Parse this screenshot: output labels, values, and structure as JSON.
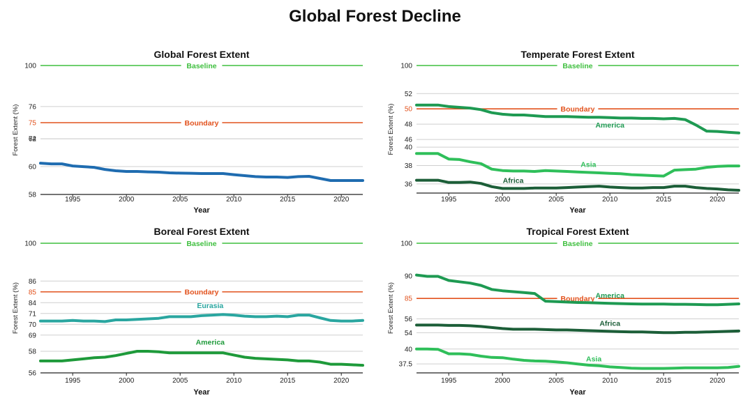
{
  "title": "Global Forest Decline",
  "colors": {
    "baseline": "#3fbf3f",
    "boundary": "#e2521d",
    "boundary_tick": "#e2521d",
    "global": "#1f6cb0",
    "eurasia": "#2aa6a0",
    "america_temperate": "#1e9a52",
    "africa": "#1c5e38",
    "asia": "#2fbf5a",
    "america_boreal": "#1e9a3a",
    "america_tropical": "#1e9a52",
    "grid": "#cfcfcf",
    "axis": "#222222"
  },
  "chart_data": [
    {
      "type": "line",
      "title": "Global Forest Extent",
      "xlabel": "Year",
      "ylabel": "Forest Extent (%)",
      "xlim": [
        1992,
        2022
      ],
      "xticks": [
        "1995",
        "2000",
        "2005",
        "2010",
        "2015",
        "2020"
      ],
      "yticks": [
        "100",
        "76",
        "75",
        "74",
        "62",
        "60",
        "58"
      ],
      "ytick_colors": [
        "",
        "",
        "boundary",
        "",
        "",
        "",
        ""
      ],
      "y_segments": [
        {
          "range": [
            58,
            62
          ],
          "weight": 0.38
        },
        {
          "range": [
            74,
            76
          ],
          "weight": 0.22
        },
        {
          "range": [
            76,
            100
          ],
          "weight": 0.28
        }
      ],
      "reference_lines": [
        {
          "label": "Baseline",
          "value": 100,
          "color_key": "baseline"
        },
        {
          "label": "Boundary",
          "value": 75,
          "color_key": "boundary"
        }
      ],
      "x": [
        1992,
        1993,
        1994,
        1995,
        1996,
        1997,
        1998,
        1999,
        2000,
        2001,
        2002,
        2003,
        2004,
        2005,
        2006,
        2007,
        2008,
        2009,
        2010,
        2011,
        2012,
        2013,
        2014,
        2015,
        2016,
        2017,
        2018,
        2019,
        2020,
        2021,
        2022
      ],
      "series": [
        {
          "name": "",
          "color_key": "global",
          "label_at": null,
          "values": [
            60.25,
            60.2,
            60.2,
            60.05,
            60.0,
            59.95,
            59.8,
            59.7,
            59.65,
            59.65,
            59.62,
            59.6,
            59.55,
            59.53,
            59.52,
            59.5,
            59.5,
            59.5,
            59.42,
            59.35,
            59.28,
            59.25,
            59.25,
            59.22,
            59.28,
            59.3,
            59.15,
            59.0,
            59.0,
            59.0,
            59.0
          ]
        }
      ]
    },
    {
      "type": "line",
      "title": "Temperate Forest Extent",
      "xlabel": "Year",
      "ylabel": "Forest Extent (%)",
      "xlim": [
        1992,
        2022
      ],
      "xticks": [
        "1995",
        "2000",
        "2005",
        "2010",
        "2015",
        "2020"
      ],
      "yticks": [
        "100",
        "52",
        "50",
        "48",
        "46",
        "40",
        "38",
        "36"
      ],
      "ytick_colors": [
        "",
        "",
        "boundary",
        "",
        "",
        "",
        "",
        ""
      ],
      "y_segments": [
        {
          "range": [
            35,
            40
          ],
          "weight": 0.36
        },
        {
          "range": [
            45,
            52
          ],
          "weight": 0.42
        },
        {
          "range": [
            52,
            100
          ],
          "weight": 0.22
        }
      ],
      "reference_lines": [
        {
          "label": "Baseline",
          "value": 100,
          "color_key": "baseline"
        },
        {
          "label": "Boundary",
          "value": 50,
          "color_key": "boundary"
        }
      ],
      "x": [
        1992,
        1993,
        1994,
        1995,
        1996,
        1997,
        1998,
        1999,
        2000,
        2001,
        2002,
        2003,
        2004,
        2005,
        2006,
        2007,
        2008,
        2009,
        2010,
        2011,
        2012,
        2013,
        2014,
        2015,
        2016,
        2017,
        2018,
        2019,
        2020,
        2021,
        2022
      ],
      "series": [
        {
          "name": "America",
          "color_key": "america_temperate",
          "label_year": 2010,
          "label_dy": 14,
          "values": [
            50.5,
            50.5,
            50.5,
            50.3,
            50.2,
            50.1,
            49.9,
            49.5,
            49.3,
            49.2,
            49.2,
            49.1,
            49.0,
            49.0,
            49.0,
            48.95,
            48.9,
            48.9,
            48.85,
            48.8,
            48.8,
            48.75,
            48.75,
            48.7,
            48.75,
            48.6,
            47.9,
            47.1,
            47.05,
            46.95,
            46.85
          ]
        },
        {
          "name": "Asia",
          "color_key": "asia",
          "label_year": 2008,
          "label_dy": -8,
          "values": [
            39.3,
            39.3,
            39.3,
            38.7,
            38.65,
            38.4,
            38.2,
            37.6,
            37.45,
            37.4,
            37.4,
            37.35,
            37.45,
            37.4,
            37.35,
            37.3,
            37.25,
            37.2,
            37.15,
            37.1,
            37.0,
            36.95,
            36.9,
            36.85,
            37.5,
            37.55,
            37.6,
            37.8,
            37.9,
            37.95,
            37.95
          ]
        },
        {
          "name": "Africa",
          "color_key": "africa",
          "label_year": 2001,
          "label_dy": -8,
          "values": [
            36.4,
            36.4,
            36.4,
            36.15,
            36.15,
            36.2,
            36.05,
            35.7,
            35.5,
            35.5,
            35.5,
            35.55,
            35.55,
            35.55,
            35.6,
            35.65,
            35.7,
            35.75,
            35.65,
            35.6,
            35.55,
            35.55,
            35.6,
            35.6,
            35.75,
            35.75,
            35.6,
            35.5,
            35.45,
            35.35,
            35.3
          ]
        }
      ]
    },
    {
      "type": "line",
      "title": "Boreal Forest Extent",
      "xlabel": "Year",
      "ylabel": "Forest Extent (%)",
      "xlim": [
        1992,
        2022
      ],
      "xticks": [
        "1995",
        "2000",
        "2005",
        "2010",
        "2015",
        "2020"
      ],
      "yticks": [
        "100",
        "86",
        "85",
        "84",
        "71",
        "70",
        "69",
        "58",
        "56"
      ],
      "ytick_colors": [
        "",
        "",
        "boundary",
        "",
        "",
        "",
        "",
        "",
        ""
      ],
      "y_segments": [
        {
          "range": [
            56,
            59
          ],
          "weight": 0.25
        },
        {
          "range": [
            68.5,
            71.5
          ],
          "weight": 0.25
        },
        {
          "range": [
            83.5,
            86.5
          ],
          "weight": 0.25
        },
        {
          "range": [
            86.5,
            100
          ],
          "weight": 0.25
        }
      ],
      "reference_lines": [
        {
          "label": "Baseline",
          "value": 100,
          "color_key": "baseline"
        },
        {
          "label": "Boundary",
          "value": 85,
          "color_key": "boundary"
        }
      ],
      "x": [
        1992,
        1993,
        1994,
        1995,
        1996,
        1997,
        1998,
        1999,
        2000,
        2001,
        2002,
        2003,
        2004,
        2005,
        2006,
        2007,
        2008,
        2009,
        2010,
        2011,
        2012,
        2013,
        2014,
        2015,
        2016,
        2017,
        2018,
        2019,
        2020,
        2021,
        2022
      ],
      "series": [
        {
          "name": "Eurasia",
          "color_key": "eurasia",
          "label_year": 2007.8,
          "label_dy": -10,
          "values": [
            70.3,
            70.3,
            70.3,
            70.35,
            70.3,
            70.3,
            70.25,
            70.4,
            70.4,
            70.45,
            70.5,
            70.55,
            70.7,
            70.7,
            70.7,
            70.8,
            70.85,
            70.9,
            70.85,
            70.75,
            70.7,
            70.7,
            70.75,
            70.7,
            70.85,
            70.85,
            70.6,
            70.35,
            70.3,
            70.3,
            70.35
          ]
        },
        {
          "name": "America",
          "color_key": "america_boreal",
          "label_year": 2007.8,
          "label_dy": -12,
          "values": [
            57.1,
            57.1,
            57.1,
            57.2,
            57.3,
            57.4,
            57.45,
            57.6,
            57.8,
            58.0,
            58.0,
            57.95,
            57.85,
            57.85,
            57.85,
            57.85,
            57.85,
            57.85,
            57.65,
            57.45,
            57.35,
            57.3,
            57.25,
            57.2,
            57.1,
            57.1,
            57.0,
            56.8,
            56.8,
            56.75,
            56.7
          ]
        }
      ]
    },
    {
      "type": "line",
      "title": "Tropical Forest Extent",
      "xlabel": "Year",
      "ylabel": "Forest Extent (%)",
      "xlim": [
        1992,
        2022
      ],
      "xticks": [
        "1995",
        "2000",
        "2005",
        "2010",
        "2015",
        "2020"
      ],
      "yticks": [
        "100",
        "90",
        "85",
        "56",
        "54",
        "40",
        "37.5"
      ],
      "ytick_colors": [
        "",
        "",
        "boundary",
        "",
        "",
        "",
        ""
      ],
      "y_segments": [
        {
          "range": [
            36,
            41
          ],
          "weight": 0.23
        },
        {
          "range": [
            52.5,
            57
          ],
          "weight": 0.24
        },
        {
          "range": [
            82,
            91.5
          ],
          "weight": 0.33
        },
        {
          "range": [
            91.5,
            100
          ],
          "weight": 0.2
        }
      ],
      "reference_lines": [
        {
          "label": "Baseline",
          "value": 100,
          "color_key": "baseline"
        },
        {
          "label": "Boundary",
          "value": 85,
          "color_key": "boundary"
        }
      ],
      "x": [
        1992,
        1993,
        1994,
        1995,
        1996,
        1997,
        1998,
        1999,
        2000,
        2001,
        2002,
        2003,
        2004,
        2005,
        2006,
        2007,
        2008,
        2009,
        2010,
        2011,
        2012,
        2013,
        2014,
        2015,
        2016,
        2017,
        2018,
        2019,
        2020,
        2021,
        2022
      ],
      "series": [
        {
          "name": "America",
          "color_key": "america_tropical",
          "label_year": 2010,
          "label_dy": -8,
          "values": [
            90.2,
            89.9,
            89.9,
            89.0,
            88.7,
            88.4,
            87.9,
            87.0,
            86.7,
            86.5,
            86.3,
            86.1,
            84.4,
            84.3,
            84.2,
            84.1,
            84.05,
            84.0,
            83.9,
            83.85,
            83.8,
            83.75,
            83.75,
            83.75,
            83.7,
            83.7,
            83.65,
            83.6,
            83.6,
            83.7,
            83.8
          ]
        },
        {
          "name": "Africa",
          "color_key": "africa",
          "label_year": 2010,
          "label_dy": -8,
          "values": [
            55.1,
            55.1,
            55.1,
            55.05,
            55.05,
            55.0,
            54.9,
            54.75,
            54.6,
            54.5,
            54.5,
            54.5,
            54.45,
            54.4,
            54.4,
            54.35,
            54.3,
            54.25,
            54.2,
            54.15,
            54.1,
            54.1,
            54.05,
            54.0,
            54.0,
            54.05,
            54.05,
            54.1,
            54.15,
            54.2,
            54.25
          ]
        },
        {
          "name": "Asia",
          "color_key": "asia",
          "label_year": 2008.5,
          "label_dy": -6,
          "values": [
            40.0,
            40.0,
            39.95,
            39.2,
            39.2,
            39.1,
            38.8,
            38.6,
            38.55,
            38.3,
            38.1,
            38.0,
            37.95,
            37.85,
            37.7,
            37.5,
            37.3,
            37.2,
            37.0,
            36.9,
            36.8,
            36.75,
            36.75,
            36.75,
            36.8,
            36.85,
            36.85,
            36.85,
            36.85,
            36.9,
            37.1
          ]
        }
      ]
    }
  ]
}
